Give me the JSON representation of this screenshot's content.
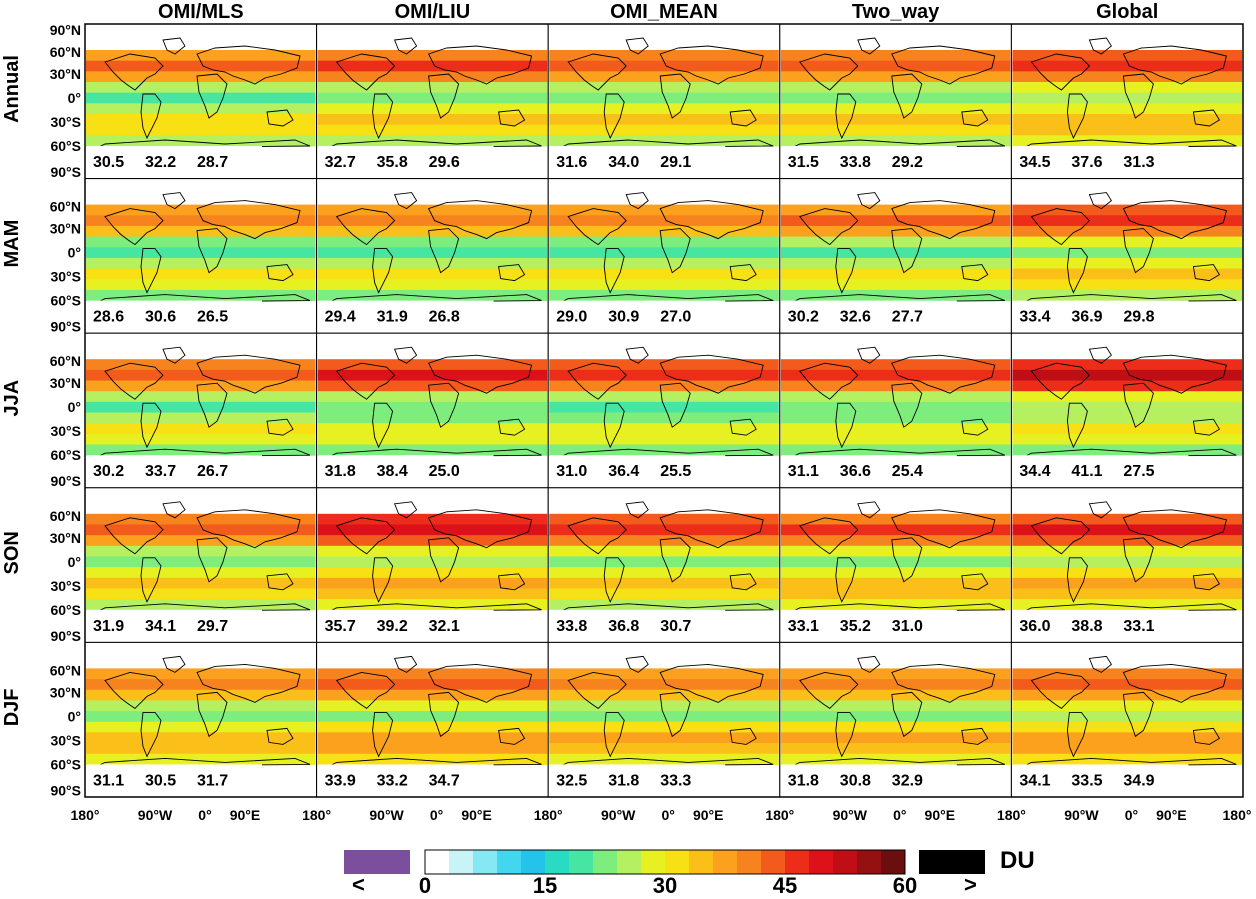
{
  "chart_data": {
    "type": "heatmap",
    "layout": "grid of maps, 5 rows x 5 columns",
    "columns": [
      "OMI/MLS",
      "OMI/LIU",
      "OMI_MEAN",
      "Two_way",
      "Global"
    ],
    "rows": [
      "Annual",
      "MAM",
      "JJA",
      "SON",
      "DJF"
    ],
    "y_ticks": [
      "90°N",
      "60°N",
      "30°N",
      "0°",
      "30°S",
      "60°S",
      "90°S"
    ],
    "x_ticks": [
      "180°",
      "90°W",
      "0°",
      "90°E"
    ],
    "x_tick_last": "180°",
    "stats": [
      [
        [
          "30.5",
          "32.2",
          "28.7"
        ],
        [
          "32.7",
          "35.8",
          "29.6"
        ],
        [
          "31.6",
          "34.0",
          "29.1"
        ],
        [
          "31.5",
          "33.8",
          "29.2"
        ],
        [
          "34.5",
          "37.6",
          "31.3"
        ]
      ],
      [
        [
          "28.6",
          "30.6",
          "26.5"
        ],
        [
          "29.4",
          "31.9",
          "26.8"
        ],
        [
          "29.0",
          "30.9",
          "27.0"
        ],
        [
          "30.2",
          "32.6",
          "27.7"
        ],
        [
          "33.4",
          "36.9",
          "29.8"
        ]
      ],
      [
        [
          "30.2",
          "33.7",
          "26.7"
        ],
        [
          "31.8",
          "38.4",
          "25.0"
        ],
        [
          "31.0",
          "36.4",
          "25.5"
        ],
        [
          "31.1",
          "36.6",
          "25.4"
        ],
        [
          "34.4",
          "41.1",
          "27.5"
        ]
      ],
      [
        [
          "31.9",
          "34.1",
          "29.7"
        ],
        [
          "35.7",
          "39.2",
          "32.1"
        ],
        [
          "33.8",
          "36.8",
          "30.7"
        ],
        [
          "33.1",
          "35.2",
          "31.0"
        ],
        [
          "36.0",
          "38.8",
          "33.1"
        ]
      ],
      [
        [
          "31.1",
          "30.5",
          "31.7"
        ],
        [
          "33.9",
          "33.2",
          "34.7"
        ],
        [
          "32.5",
          "31.8",
          "33.3"
        ],
        [
          "31.8",
          "30.8",
          "32.9"
        ],
        [
          "34.1",
          "33.5",
          "34.9"
        ]
      ]
    ],
    "colorbar": {
      "ticks": [
        "0",
        "15",
        "30",
        "45",
        "60"
      ],
      "under_label": "<",
      "over_label": ">",
      "unit": "DU",
      "range": [
        0,
        60
      ],
      "under_color": "#7b4f9e",
      "over_color": "#000000",
      "colors": [
        "#ffffff",
        "#c8f4f7",
        "#86e8f2",
        "#43d6ef",
        "#24c3ea",
        "#29dbc3",
        "#47e5a2",
        "#7ded7e",
        "#b4f060",
        "#e7f020",
        "#f7e014",
        "#fbbf19",
        "#fba11d",
        "#f7831f",
        "#f35b1c",
        "#ec2d19",
        "#dc111a",
        "#bf0e16",
        "#951011",
        "#6b0e0e"
      ]
    }
  }
}
